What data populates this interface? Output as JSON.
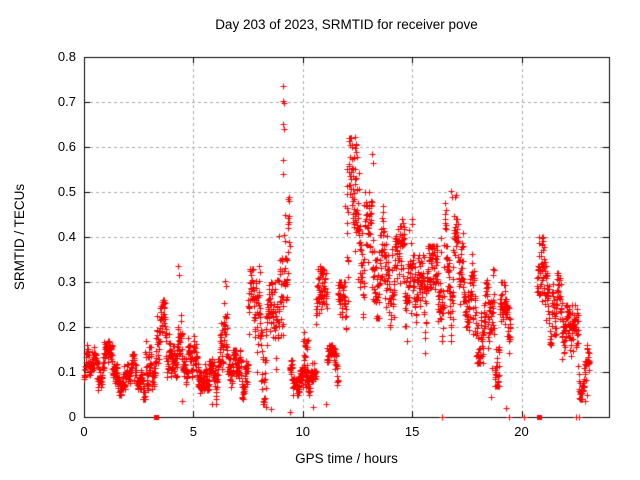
{
  "title": "Day 203 of 2023, SRMTID for receiver pove",
  "chart_data": {
    "type": "scatter",
    "title": "Day 203 of 2023, SRMTID for receiver pove",
    "xlabel": "GPS time / hours",
    "ylabel": "SRMTID / TECUs",
    "xlim": [
      0,
      24
    ],
    "ylim": [
      0,
      0.8
    ],
    "xticks": [
      0,
      5,
      10,
      15,
      20
    ],
    "xtick_labels": [
      "0",
      "5",
      "10",
      "15",
      "20"
    ],
    "yticks": [
      0,
      0.1,
      0.2,
      0.3,
      0.4,
      0.5,
      0.6,
      0.7,
      0.8
    ],
    "ytick_labels": [
      "0",
      "0.1",
      "0.2",
      "0.3",
      "0.4",
      "0.5",
      "0.6",
      "0.7",
      "0.8"
    ],
    "grid": true,
    "legend": "none",
    "marker": "plus",
    "marker_color": "#ff0000",
    "grid_color": "#aaaaaa",
    "border_color": "#000000",
    "background_color": "#ffffff",
    "prng_seed": 978,
    "series": [
      {
        "name": "SRMTID",
        "density_bands": [
          [
            0.0,
            0.4,
            0.07,
            0.16,
            48
          ],
          [
            0.4,
            1.3,
            0.06,
            0.17,
            108
          ],
          [
            1.3,
            2.3,
            0.05,
            0.14,
            120
          ],
          [
            2.3,
            2.8,
            0.04,
            0.12,
            60
          ],
          [
            2.8,
            3.3,
            0.06,
            0.21,
            60
          ],
          [
            3.3,
            3.7,
            0.09,
            0.26,
            48
          ],
          [
            3.7,
            4.5,
            0.09,
            0.25,
            96
          ],
          [
            4.5,
            5.2,
            0.07,
            0.18,
            84
          ],
          [
            5.2,
            6.2,
            0.03,
            0.13,
            120
          ],
          [
            6.2,
            6.6,
            0.08,
            0.3,
            48
          ],
          [
            6.6,
            7.5,
            0.04,
            0.15,
            108
          ],
          [
            7.5,
            8.1,
            0.07,
            0.33,
            72
          ],
          [
            8.1,
            8.8,
            0.03,
            0.3,
            84
          ],
          [
            8.8,
            9.4,
            0.1,
            0.5,
            72
          ],
          [
            9.4,
            10.3,
            0.05,
            0.14,
            108
          ],
          [
            10.0,
            10.25,
            0.14,
            0.21,
            12
          ],
          [
            10.3,
            10.6,
            0.02,
            0.12,
            36
          ],
          [
            10.6,
            11.1,
            0.09,
            0.33,
            60
          ],
          [
            11.1,
            11.6,
            0.07,
            0.16,
            60
          ],
          [
            11.6,
            12.0,
            0.12,
            0.3,
            48
          ],
          [
            12.0,
            12.6,
            0.18,
            0.62,
            84
          ],
          [
            12.6,
            13.1,
            0.2,
            0.5,
            60
          ],
          [
            13.1,
            13.5,
            0.22,
            0.58,
            48
          ],
          [
            13.5,
            14.2,
            0.2,
            0.47,
            84
          ],
          [
            14.2,
            15.0,
            0.17,
            0.44,
            96
          ],
          [
            15.0,
            15.6,
            0.14,
            0.36,
            72
          ],
          [
            15.6,
            16.3,
            0.15,
            0.38,
            84
          ],
          [
            16.3,
            17.0,
            0.17,
            0.5,
            84
          ],
          [
            17.0,
            17.6,
            0.2,
            0.44,
            72
          ],
          [
            17.6,
            18.3,
            0.12,
            0.37,
            84
          ],
          [
            18.3,
            19.0,
            0.07,
            0.33,
            84
          ],
          [
            19.0,
            19.5,
            0.09,
            0.3,
            60
          ],
          [
            20.7,
            21.2,
            0.12,
            0.4,
            60
          ],
          [
            21.2,
            21.9,
            0.12,
            0.32,
            84
          ],
          [
            21.9,
            22.6,
            0.08,
            0.25,
            84
          ],
          [
            22.6,
            23.1,
            0.04,
            0.16,
            60
          ]
        ],
        "peak_points": [
          [
            9.08,
            0.735
          ],
          [
            9.1,
            0.702
          ],
          [
            9.13,
            0.698
          ],
          [
            9.09,
            0.652
          ],
          [
            9.12,
            0.64
          ],
          [
            9.1,
            0.571
          ],
          [
            9.08,
            0.54
          ],
          [
            12.38,
            0.622
          ],
          [
            12.42,
            0.605
          ],
          [
            12.4,
            0.598
          ],
          [
            12.36,
            0.578
          ],
          [
            13.18,
            0.585
          ],
          [
            13.22,
            0.565
          ],
          [
            11.95,
            0.468
          ],
          [
            4.28,
            0.335
          ],
          [
            4.32,
            0.315
          ],
          [
            3.58,
            0.255
          ],
          [
            6.43,
            0.302
          ],
          [
            6.47,
            0.292
          ],
          [
            7.98,
            0.335
          ],
          [
            8.03,
            0.322
          ],
          [
            10.78,
            0.335
          ],
          [
            10.82,
            0.32
          ],
          [
            16.78,
            0.502
          ],
          [
            16.83,
            0.488
          ],
          [
            20.92,
            0.4
          ],
          [
            20.96,
            0.392
          ],
          [
            20.94,
            0.383
          ]
        ],
        "low_points": [
          [
            4.5,
            0.035
          ],
          [
            5.85,
            0.03
          ],
          [
            6.05,
            0.028
          ],
          [
            8.3,
            0.022
          ],
          [
            8.55,
            0.018
          ],
          [
            9.4,
            0.012
          ],
          [
            10.45,
            0.022
          ],
          [
            11.05,
            0.03
          ],
          [
            18.6,
            0.045
          ],
          [
            19.3,
            0.02
          ],
          [
            22.9,
            0.035
          ],
          [
            23.0,
            0.048
          ]
        ],
        "zero_line_plus_x": [
          16.35,
          19.45,
          20.1,
          22.5,
          22.65
        ],
        "zero_line_square_x": [
          3.3,
          20.78
        ]
      }
    ]
  }
}
